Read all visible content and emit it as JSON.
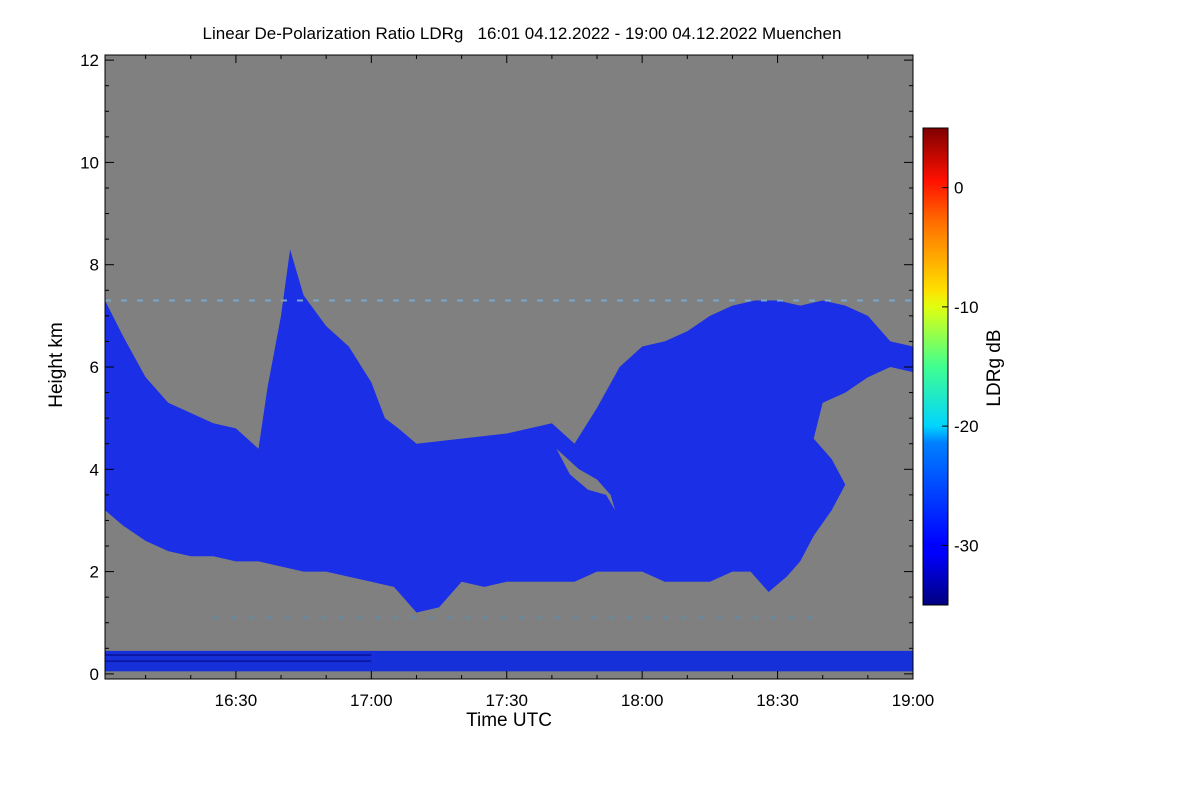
{
  "chart_data": {
    "type": "heatmap",
    "title": "Linear De-Polarization Ratio LDRg   16:01 04.12.2022 - 19:00 04.12.2022 Muenchen",
    "xlabel": "Time UTC",
    "ylabel": "Height km",
    "x_range_min": [
      961,
      1140
    ],
    "xlim_label": [
      "16:01",
      "19:00"
    ],
    "x_ticks": [
      {
        "min": 990,
        "label": "16:30"
      },
      {
        "min": 1020,
        "label": "17:00"
      },
      {
        "min": 1050,
        "label": "17:30"
      },
      {
        "min": 1080,
        "label": "18:00"
      },
      {
        "min": 1110,
        "label": "18:30"
      },
      {
        "min": 1140,
        "label": "19:00"
      }
    ],
    "ylim": [
      -0.1,
      12.1
    ],
    "y_ticks": [
      {
        "v": 0,
        "label": "0"
      },
      {
        "v": 2,
        "label": "2"
      },
      {
        "v": 4,
        "label": "4"
      },
      {
        "v": 6,
        "label": "6"
      },
      {
        "v": 8,
        "label": "8"
      },
      {
        "v": 10,
        "label": "10"
      },
      {
        "v": 12,
        "label": "12"
      }
    ],
    "colorbar": {
      "label": "LDRg dB",
      "range": [
        -35,
        5
      ],
      "ticks": [
        {
          "v": 0,
          "label": "0"
        },
        {
          "v": -10,
          "label": "-10"
        },
        {
          "v": -20,
          "label": "-20"
        },
        {
          "v": -30,
          "label": "-30"
        }
      ]
    },
    "background_color": "#808080",
    "cloud_color": "#1a2fe6",
    "cloud_top_km": [
      {
        "t": 961,
        "h": 7.3
      },
      {
        "t": 965,
        "h": 6.6
      },
      {
        "t": 970,
        "h": 5.8
      },
      {
        "t": 975,
        "h": 5.3
      },
      {
        "t": 980,
        "h": 5.1
      },
      {
        "t": 985,
        "h": 4.9
      },
      {
        "t": 990,
        "h": 4.8
      },
      {
        "t": 995,
        "h": 4.4
      },
      {
        "t": 997,
        "h": 5.6
      },
      {
        "t": 1000,
        "h": 7.0
      },
      {
        "t": 1002,
        "h": 8.3
      },
      {
        "t": 1005,
        "h": 7.4
      },
      {
        "t": 1010,
        "h": 6.8
      },
      {
        "t": 1015,
        "h": 6.4
      },
      {
        "t": 1020,
        "h": 5.7
      },
      {
        "t": 1023,
        "h": 5.0
      },
      {
        "t": 1026,
        "h": 4.8
      },
      {
        "t": 1030,
        "h": 4.5
      },
      {
        "t": 1040,
        "h": 4.6
      },
      {
        "t": 1050,
        "h": 4.7
      },
      {
        "t": 1060,
        "h": 4.9
      },
      {
        "t": 1065,
        "h": 4.5
      },
      {
        "t": 1070,
        "h": 5.2
      },
      {
        "t": 1075,
        "h": 6.0
      },
      {
        "t": 1080,
        "h": 6.4
      },
      {
        "t": 1085,
        "h": 6.5
      },
      {
        "t": 1090,
        "h": 6.7
      },
      {
        "t": 1095,
        "h": 7.0
      },
      {
        "t": 1100,
        "h": 7.2
      },
      {
        "t": 1105,
        "h": 7.3
      },
      {
        "t": 1110,
        "h": 7.3
      },
      {
        "t": 1115,
        "h": 7.2
      },
      {
        "t": 1120,
        "h": 7.3
      },
      {
        "t": 1125,
        "h": 7.2
      },
      {
        "t": 1130,
        "h": 7.0
      },
      {
        "t": 1135,
        "h": 6.5
      },
      {
        "t": 1140,
        "h": 6.4
      }
    ],
    "cloud_base_km": [
      {
        "t": 1140,
        "h": 5.9
      },
      {
        "t": 1135,
        "h": 6.0
      },
      {
        "t": 1130,
        "h": 5.8
      },
      {
        "t": 1125,
        "h": 5.5
      },
      {
        "t": 1120,
        "h": 5.3
      },
      {
        "t": 1118,
        "h": 4.6
      },
      {
        "t": 1122,
        "h": 4.2
      },
      {
        "t": 1125,
        "h": 3.7
      },
      {
        "t": 1122,
        "h": 3.2
      },
      {
        "t": 1118,
        "h": 2.7
      },
      {
        "t": 1115,
        "h": 2.2
      },
      {
        "t": 1112,
        "h": 1.9
      },
      {
        "t": 1108,
        "h": 1.6
      },
      {
        "t": 1104,
        "h": 2.0
      },
      {
        "t": 1100,
        "h": 2.0
      },
      {
        "t": 1095,
        "h": 1.8
      },
      {
        "t": 1090,
        "h": 1.8
      },
      {
        "t": 1085,
        "h": 1.8
      },
      {
        "t": 1080,
        "h": 2.0
      },
      {
        "t": 1075,
        "h": 2.0
      },
      {
        "t": 1070,
        "h": 2.0
      },
      {
        "t": 1065,
        "h": 1.8
      },
      {
        "t": 1060,
        "h": 1.8
      },
      {
        "t": 1055,
        "h": 1.8
      },
      {
        "t": 1050,
        "h": 1.8
      },
      {
        "t": 1045,
        "h": 1.7
      },
      {
        "t": 1040,
        "h": 1.8
      },
      {
        "t": 1035,
        "h": 1.3
      },
      {
        "t": 1030,
        "h": 1.2
      },
      {
        "t": 1025,
        "h": 1.7
      },
      {
        "t": 1020,
        "h": 1.8
      },
      {
        "t": 1015,
        "h": 1.9
      },
      {
        "t": 1010,
        "h": 2.0
      },
      {
        "t": 1005,
        "h": 2.0
      },
      {
        "t": 1000,
        "h": 2.1
      },
      {
        "t": 995,
        "h": 2.2
      },
      {
        "t": 990,
        "h": 2.2
      },
      {
        "t": 985,
        "h": 2.3
      },
      {
        "t": 980,
        "h": 2.3
      },
      {
        "t": 975,
        "h": 2.4
      },
      {
        "t": 970,
        "h": 2.6
      },
      {
        "t": 965,
        "h": 2.9
      },
      {
        "t": 961,
        "h": 3.2
      }
    ],
    "clear_notch_km": [
      {
        "t": 1061,
        "h": 4.4
      },
      {
        "t": 1066,
        "h": 4.0
      },
      {
        "t": 1070,
        "h": 3.8
      },
      {
        "t": 1073,
        "h": 3.5
      },
      {
        "t": 1074,
        "h": 3.2
      },
      {
        "t": 1072,
        "h": 3.5
      },
      {
        "t": 1068,
        "h": 3.6
      },
      {
        "t": 1064,
        "h": 3.9
      }
    ],
    "clear_pocket_km": [
      {
        "t": 1120,
        "h": 4.8
      },
      {
        "t": 1128,
        "h": 4.6
      },
      {
        "t": 1135,
        "h": 4.4
      },
      {
        "t": 1140,
        "h": 4.3
      },
      {
        "t": 1140,
        "h": 5.5
      },
      {
        "t": 1130,
        "h": 5.3
      },
      {
        "t": 1122,
        "h": 5.0
      }
    ],
    "noise_line_km": 7.3,
    "ground_layer_km": [
      0.05,
      0.45
    ]
  }
}
